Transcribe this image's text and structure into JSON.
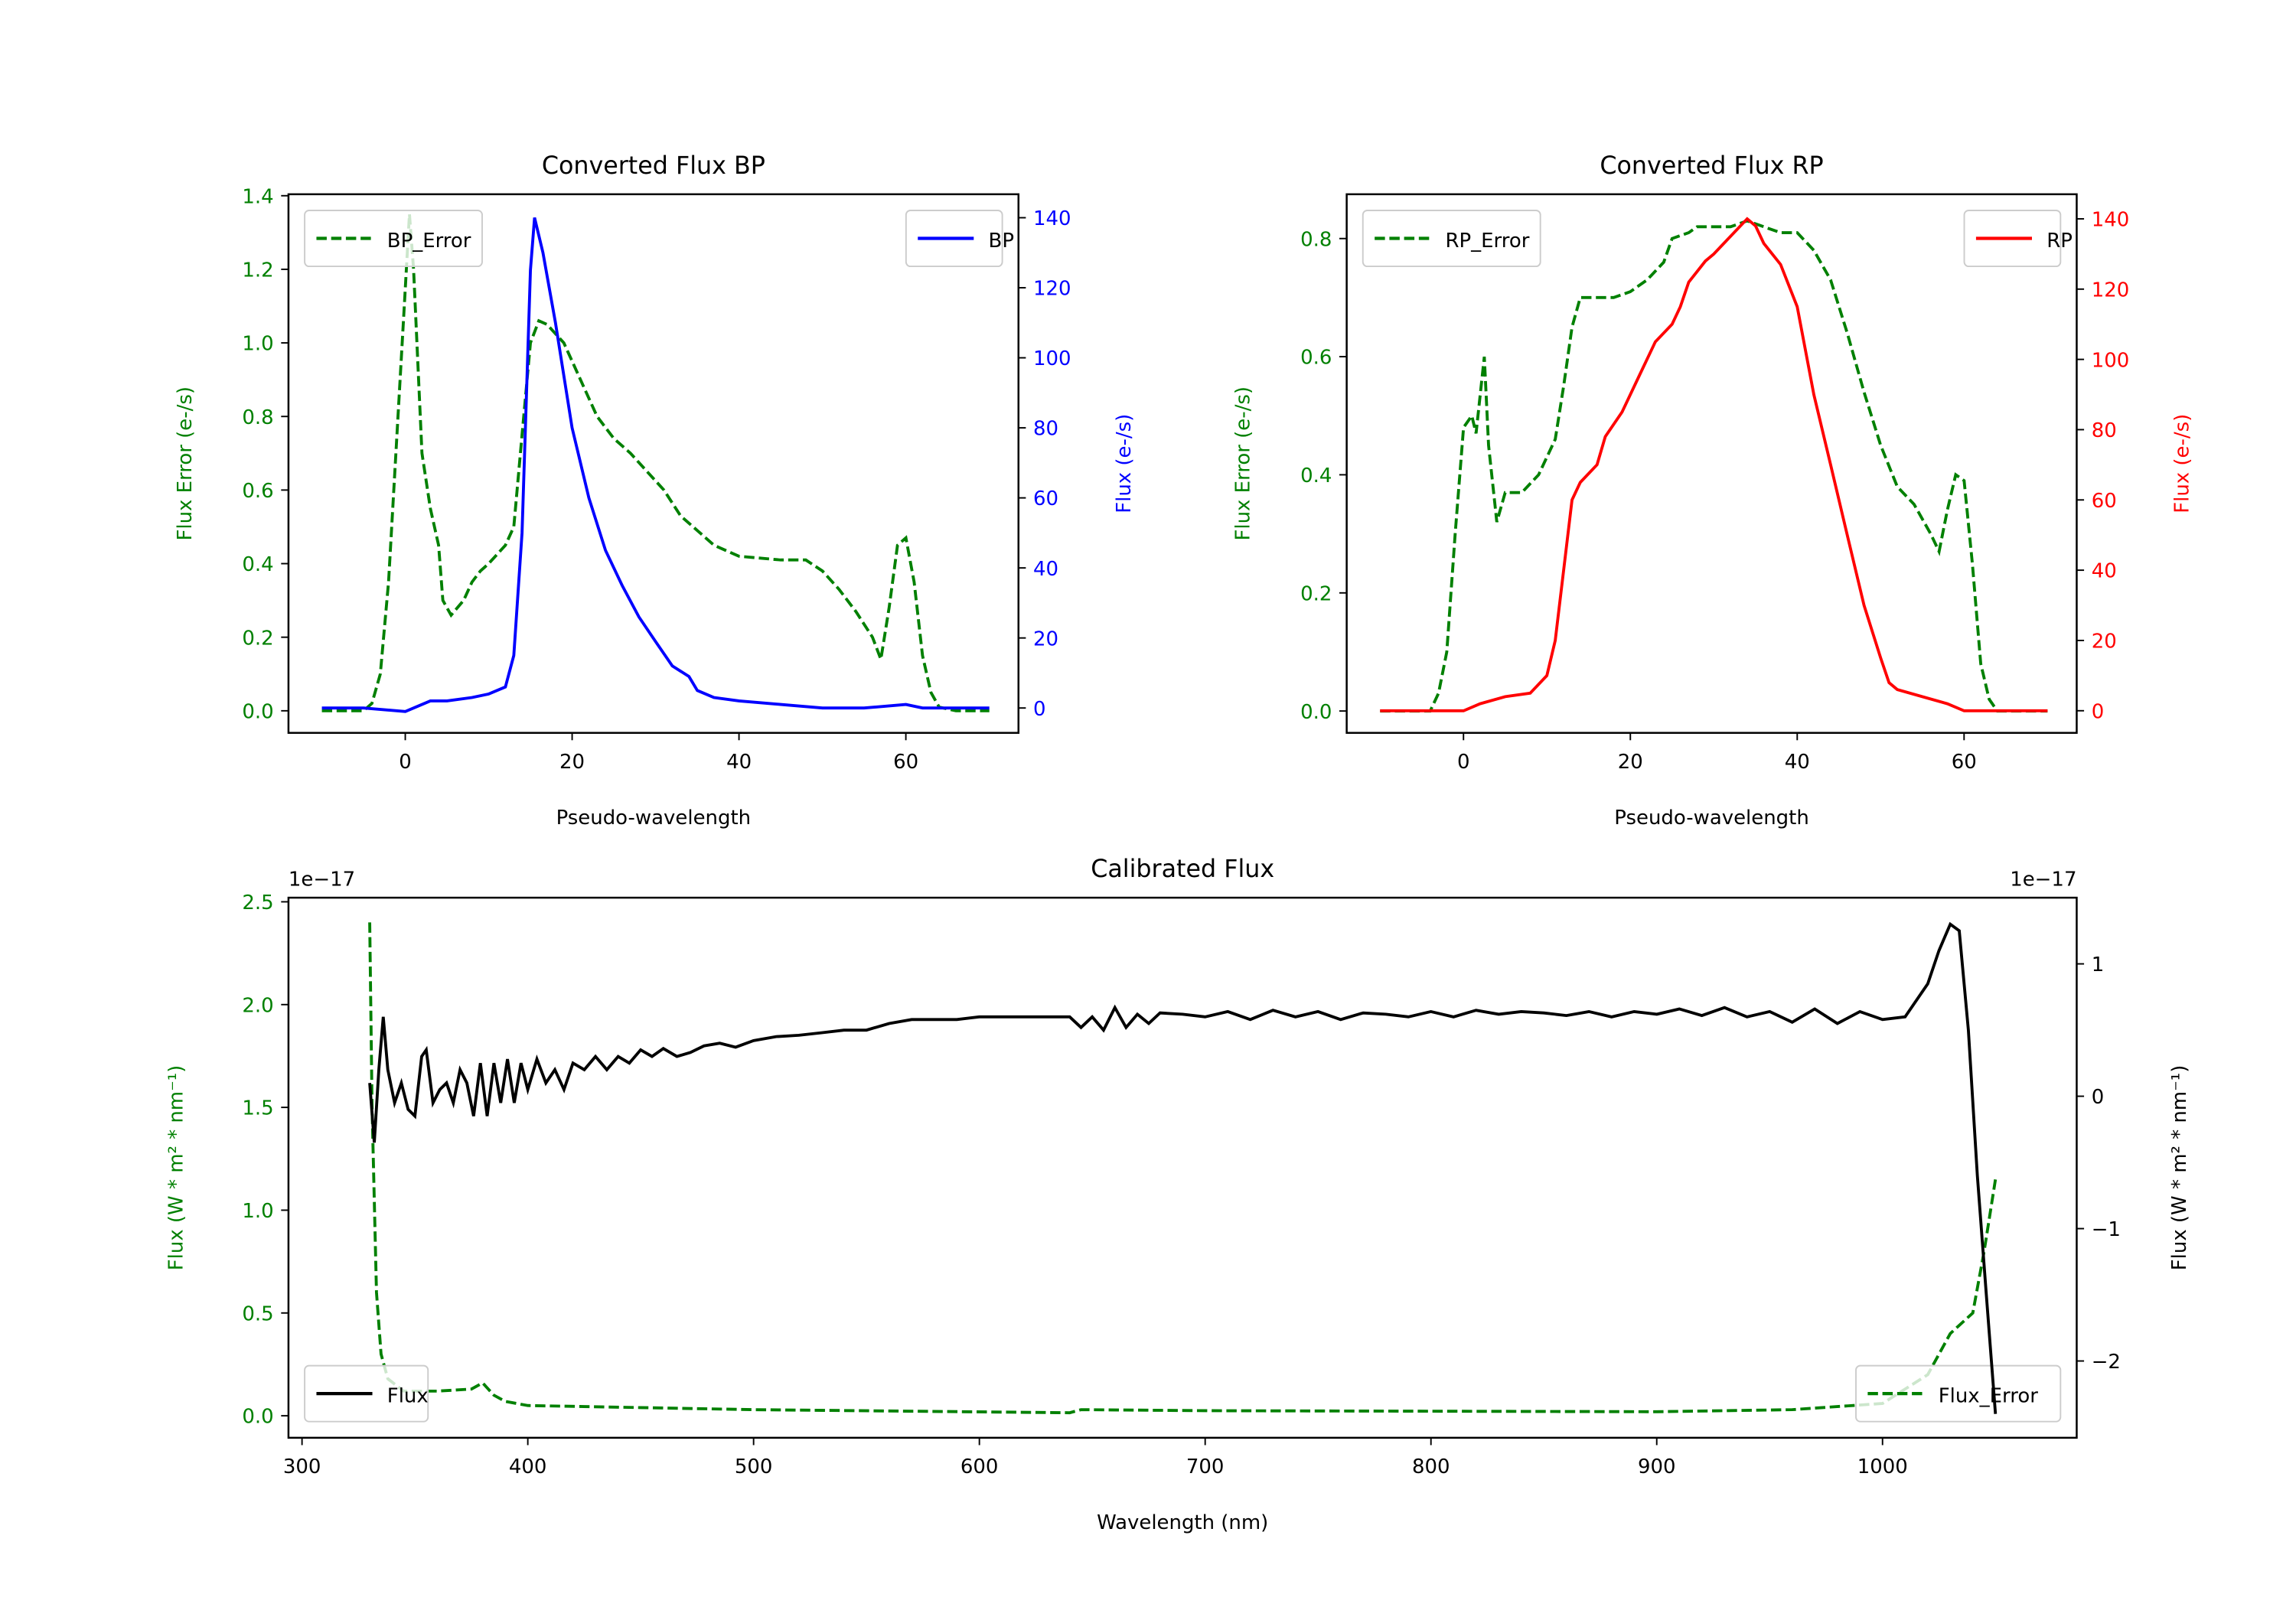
{
  "chart_data": [
    {
      "type": "line",
      "title": "Converted Flux BP",
      "xlabel": "Pseudo-wavelength",
      "ylabel_left": "Flux Error (e-/s)",
      "ylabel_right": "Flux (e-/s)",
      "xlim": [
        -14,
        73.5
      ],
      "ylim_left": [
        -0.06,
        1.404
      ],
      "ylim_right": [
        -7.1,
        146.7
      ],
      "xticks": [
        0,
        20,
        40,
        60
      ],
      "xtick_labels": [
        "0",
        "20",
        "40",
        "60"
      ],
      "yticks_left": [
        0,
        0.2,
        0.4,
        0.6,
        0.8,
        1.0,
        1.2,
        1.4
      ],
      "ytick_labels_left": [
        "0.0",
        "0.2",
        "0.4",
        "0.6",
        "0.8",
        "1.0",
        "1.2",
        "1.4"
      ],
      "yticks_right": [
        0,
        20,
        40,
        60,
        80,
        100,
        120,
        140
      ],
      "ytick_labels_right": [
        "0",
        "20",
        "40",
        "60",
        "80",
        "100",
        "120",
        "140"
      ],
      "left_color": "#008000",
      "right_color": "#0000ff",
      "series": [
        {
          "name": "BP_Error",
          "axis": "left",
          "color": "#008000",
          "dashed": true,
          "legend": "upper-left",
          "x": [
            -10,
            -5,
            -4,
            -3,
            -2,
            -1,
            0,
            0.5,
            1,
            2,
            3,
            4,
            4.5,
            5.5,
            7,
            8,
            9,
            10,
            12,
            13,
            14,
            15,
            16,
            17,
            19,
            21,
            23,
            25,
            27,
            29,
            31,
            33,
            35,
            37,
            40,
            45,
            48,
            50,
            52,
            54,
            56,
            57,
            58,
            59,
            60,
            61,
            62,
            63,
            64,
            66,
            70
          ],
          "y": [
            0,
            0,
            0.02,
            0.1,
            0.35,
            0.75,
            1.15,
            1.35,
            1.2,
            0.7,
            0.55,
            0.45,
            0.3,
            0.26,
            0.3,
            0.35,
            0.38,
            0.4,
            0.45,
            0.5,
            0.75,
            1.0,
            1.06,
            1.05,
            1.0,
            0.9,
            0.8,
            0.74,
            0.7,
            0.65,
            0.6,
            0.53,
            0.49,
            0.45,
            0.42,
            0.41,
            0.41,
            0.38,
            0.33,
            0.27,
            0.2,
            0.14,
            0.28,
            0.45,
            0.47,
            0.35,
            0.15,
            0.05,
            0.01,
            0,
            0
          ]
        },
        {
          "name": "BP",
          "axis": "right",
          "color": "#0000ff",
          "dashed": false,
          "legend": "upper-right",
          "x": [
            -10,
            -5,
            0,
            3,
            5,
            8,
            10,
            12,
            13,
            14,
            15,
            15.5,
            16.5,
            18,
            20,
            22,
            24,
            26,
            28,
            30,
            32,
            34,
            35,
            37,
            40,
            45,
            50,
            55,
            60,
            62,
            70
          ],
          "y": [
            0,
            0,
            -1,
            2,
            2,
            3,
            4,
            6,
            15,
            50,
            125,
            140,
            130,
            110,
            80,
            60,
            45,
            35,
            26,
            19,
            12,
            9,
            5,
            3,
            2,
            1,
            0,
            0,
            1,
            0,
            0
          ]
        }
      ]
    },
    {
      "type": "line",
      "title": "Converted Flux RP",
      "xlabel": "Pseudo-wavelength",
      "ylabel_left": "Flux Error (e-/s)",
      "ylabel_right": "Flux (e-/s)",
      "xlim": [
        -14,
        73.5
      ],
      "ylim_left": [
        -0.037,
        0.875
      ],
      "ylim_right": [
        -6.3,
        147
      ],
      "xticks": [
        0,
        20,
        40,
        60
      ],
      "xtick_labels": [
        "0",
        "20",
        "40",
        "60"
      ],
      "yticks_left": [
        0,
        0.2,
        0.4,
        0.6,
        0.8
      ],
      "ytick_labels_left": [
        "0.0",
        "0.2",
        "0.4",
        "0.6",
        "0.8"
      ],
      "yticks_right": [
        0,
        20,
        40,
        60,
        80,
        100,
        120,
        140
      ],
      "ytick_labels_right": [
        "0",
        "20",
        "40",
        "60",
        "80",
        "100",
        "120",
        "140"
      ],
      "left_color": "#008000",
      "right_color": "#ff0000",
      "series": [
        {
          "name": "RP_Error",
          "axis": "left",
          "color": "#008000",
          "dashed": true,
          "legend": "upper-left",
          "x": [
            -10,
            -4,
            -3,
            -2,
            -1,
            0,
            1,
            1.5,
            2.5,
            3,
            4,
            5,
            7,
            9,
            11,
            12,
            13,
            14,
            16,
            18,
            20,
            22,
            24,
            25,
            27,
            28,
            30,
            32,
            34,
            36,
            38,
            40,
            42,
            44,
            46,
            48,
            50,
            52,
            54,
            56,
            57,
            58,
            59,
            60,
            61,
            62,
            63,
            64,
            70
          ],
          "y": [
            0,
            0,
            0.03,
            0.1,
            0.3,
            0.48,
            0.5,
            0.47,
            0.6,
            0.45,
            0.32,
            0.37,
            0.37,
            0.4,
            0.46,
            0.55,
            0.65,
            0.7,
            0.7,
            0.7,
            0.71,
            0.73,
            0.76,
            0.8,
            0.81,
            0.82,
            0.82,
            0.82,
            0.83,
            0.82,
            0.81,
            0.81,
            0.78,
            0.73,
            0.64,
            0.54,
            0.45,
            0.38,
            0.35,
            0.3,
            0.27,
            0.34,
            0.4,
            0.39,
            0.25,
            0.08,
            0.02,
            0,
            0
          ]
        },
        {
          "name": "RP",
          "axis": "right",
          "color": "#ff0000",
          "dashed": false,
          "legend": "upper-right",
          "x": [
            -10,
            0,
            2,
            5,
            8,
            10,
            11,
            12,
            13,
            14,
            16,
            17,
            19,
            21,
            23,
            25,
            26,
            27,
            28,
            29,
            30,
            32,
            34,
            35,
            36,
            38,
            40,
            42,
            44,
            46,
            48,
            50,
            51,
            52,
            55,
            58,
            60,
            70
          ],
          "y": [
            0,
            0,
            2,
            4,
            5,
            10,
            20,
            40,
            60,
            65,
            70,
            78,
            85,
            95,
            105,
            110,
            115,
            122,
            125,
            128,
            130,
            135,
            140,
            138,
            133,
            127,
            115,
            90,
            70,
            50,
            30,
            15,
            8,
            6,
            4,
            2,
            0,
            0
          ]
        }
      ]
    },
    {
      "type": "line",
      "title": "Calibrated Flux",
      "xlabel": "Wavelength (nm)",
      "ylabel_left": "Flux (W * m² * nm⁻¹)",
      "ylabel_right": "Flux (W * m² * nm⁻¹)",
      "offset_left": "1e−17",
      "offset_right": "1e−17",
      "xlim": [
        294,
        1086
      ],
      "ylim_left": [
        -0.107,
        2.52
      ],
      "ylim_right": [
        -2.58,
        1.5
      ],
      "xticks": [
        300,
        400,
        500,
        600,
        700,
        800,
        900,
        1000
      ],
      "xtick_labels": [
        "300",
        "400",
        "500",
        "600",
        "700",
        "800",
        "900",
        "1000"
      ],
      "yticks_left": [
        0,
        0.5,
        1.0,
        1.5,
        2.0,
        2.5
      ],
      "ytick_labels_left": [
        "0.0",
        "0.5",
        "1.0",
        "1.5",
        "2.0",
        "2.5"
      ],
      "yticks_right": [
        -2,
        -1,
        0,
        1
      ],
      "ytick_labels_right": [
        "−2",
        "−1",
        "0",
        "1"
      ],
      "left_color": "#008000",
      "right_color": "#000000",
      "series": [
        {
          "name": "Flux_Error",
          "axis": "left",
          "color": "#008000",
          "dashed": true,
          "legend": "lower-right",
          "x": [
            330,
            331,
            333,
            335,
            338,
            345,
            360,
            375,
            380,
            385,
            390,
            400,
            450,
            500,
            640,
            645,
            700,
            900,
            960,
            1000,
            1020,
            1030,
            1040,
            1045,
            1050
          ],
          "y": [
            2.4,
            1.5,
            0.6,
            0.3,
            0.18,
            0.12,
            0.12,
            0.13,
            0.16,
            0.1,
            0.07,
            0.05,
            0.04,
            0.03,
            0.015,
            0.03,
            0.025,
            0.02,
            0.03,
            0.06,
            0.2,
            0.4,
            0.5,
            0.8,
            1.15
          ]
        },
        {
          "name": "Flux",
          "axis": "right",
          "color": "#000000",
          "dashed": false,
          "legend": "lower-left",
          "x": [
            330,
            332,
            334,
            336,
            338,
            341,
            344,
            347,
            350,
            353,
            355,
            358,
            361,
            364,
            367,
            370,
            373,
            376,
            379,
            382,
            385,
            388,
            391,
            394,
            397,
            400,
            404,
            408,
            412,
            416,
            420,
            425,
            430,
            435,
            440,
            445,
            450,
            455,
            460,
            466,
            472,
            478,
            485,
            492,
            500,
            510,
            520,
            530,
            540,
            550,
            560,
            570,
            580,
            590,
            600,
            620,
            640,
            645,
            650,
            655,
            660,
            665,
            670,
            675,
            680,
            690,
            700,
            710,
            720,
            730,
            740,
            750,
            760,
            770,
            780,
            790,
            800,
            810,
            820,
            830,
            840,
            850,
            860,
            870,
            880,
            890,
            900,
            910,
            920,
            930,
            940,
            950,
            960,
            970,
            980,
            990,
            1000,
            1010,
            1020,
            1025,
            1030,
            1034,
            1038,
            1042,
            1046,
            1050
          ],
          "y": [
            0.1,
            -0.35,
            0.2,
            0.6,
            0.2,
            -0.05,
            0.1,
            -0.1,
            -0.15,
            0.3,
            0.35,
            -0.05,
            0.05,
            0.1,
            -0.05,
            0.2,
            0.1,
            -0.15,
            0.25,
            -0.15,
            0.25,
            -0.05,
            0.28,
            -0.05,
            0.25,
            0.05,
            0.28,
            0.1,
            0.2,
            0.05,
            0.25,
            0.2,
            0.3,
            0.2,
            0.3,
            0.25,
            0.35,
            0.3,
            0.36,
            0.3,
            0.33,
            0.38,
            0.4,
            0.37,
            0.42,
            0.45,
            0.46,
            0.48,
            0.5,
            0.5,
            0.55,
            0.58,
            0.58,
            0.58,
            0.6,
            0.6,
            0.6,
            0.52,
            0.6,
            0.5,
            0.67,
            0.52,
            0.62,
            0.55,
            0.63,
            0.62,
            0.6,
            0.64,
            0.58,
            0.65,
            0.6,
            0.64,
            0.58,
            0.63,
            0.62,
            0.6,
            0.64,
            0.6,
            0.65,
            0.62,
            0.64,
            0.63,
            0.61,
            0.64,
            0.6,
            0.64,
            0.62,
            0.66,
            0.61,
            0.67,
            0.6,
            0.64,
            0.56,
            0.66,
            0.55,
            0.64,
            0.58,
            0.6,
            0.85,
            1.1,
            1.3,
            1.25,
            0.5,
            -0.6,
            -1.5,
            -2.4
          ]
        }
      ]
    }
  ]
}
